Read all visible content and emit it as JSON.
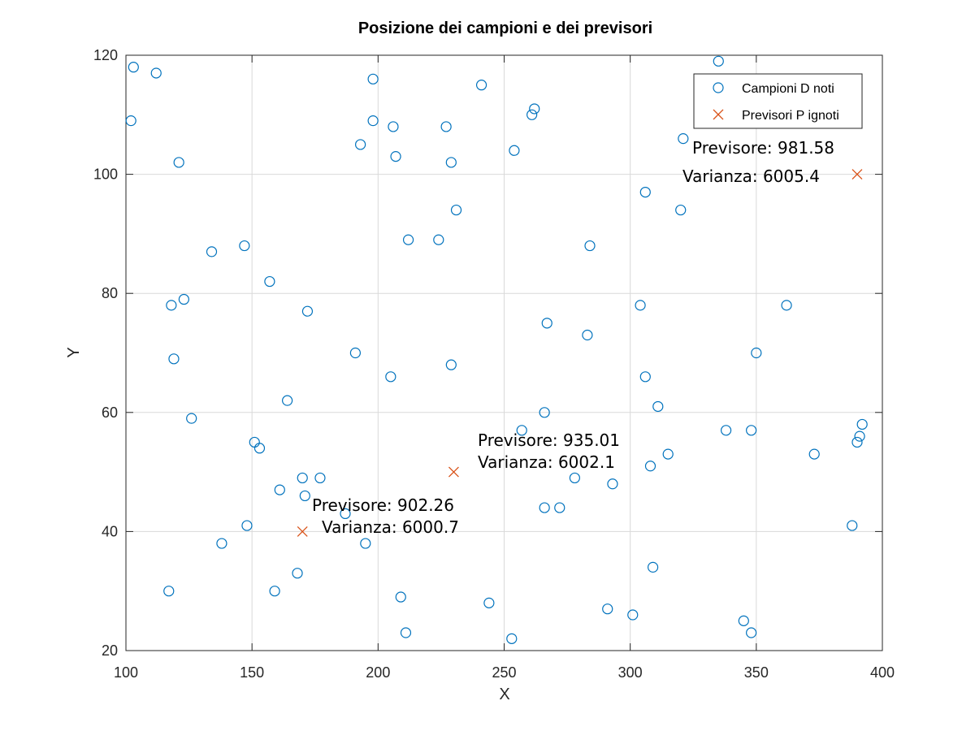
{
  "chart_data": {
    "type": "scatter",
    "title": "Posizione dei campioni e dei previsori",
    "xlabel": "X",
    "ylabel": "Y",
    "xlim": [
      100,
      400
    ],
    "ylim": [
      20,
      120
    ],
    "xticks": [
      100,
      150,
      200,
      250,
      300,
      350,
      400
    ],
    "yticks": [
      20,
      40,
      60,
      80,
      100,
      120
    ],
    "grid": true,
    "legend_position": "top-right",
    "series": [
      {
        "name": "Campioni D noti",
        "marker": "circle",
        "color": "#0072BD",
        "x": [
          103,
          102,
          112,
          121,
          134,
          147,
          157,
          118,
          123,
          119,
          126,
          164,
          172,
          151,
          153,
          170,
          177,
          161,
          171,
          148,
          138,
          117,
          159,
          168,
          187,
          195,
          209,
          211,
          191,
          205,
          198,
          198,
          206,
          193,
          207,
          212,
          224,
          227,
          229,
          231,
          229,
          241,
          254,
          261,
          262,
          284,
          267,
          283,
          266,
          257,
          266,
          272,
          278,
          244,
          253,
          291,
          301,
          293,
          309,
          308,
          306,
          311,
          315,
          304,
          306,
          320,
          321,
          335,
          362,
          350,
          338,
          348,
          373,
          390,
          391,
          392,
          388,
          345,
          348
        ],
        "y": [
          118,
          109,
          117,
          102,
          87,
          88,
          82,
          78,
          79,
          69,
          59,
          62,
          77,
          55,
          54,
          49,
          49,
          47,
          46,
          41,
          38,
          30,
          30,
          33,
          43,
          38,
          29,
          23,
          70,
          66,
          116,
          109,
          108,
          105,
          103,
          89,
          89,
          108,
          102,
          94,
          68,
          115,
          104,
          110,
          111,
          88,
          75,
          73,
          60,
          57,
          44,
          44,
          49,
          28,
          22,
          27,
          26,
          48,
          34,
          51,
          66,
          61,
          53,
          78,
          97,
          94,
          106,
          119,
          78,
          70,
          57,
          57,
          53,
          55,
          56,
          58,
          41,
          25,
          23
        ]
      },
      {
        "name": "Previsori P ignoti",
        "marker": "x",
        "color": "#D95319",
        "x": [
          170,
          230,
          390
        ],
        "y": [
          40,
          50,
          100
        ]
      }
    ],
    "annotations": [
      {
        "line1": "Previsore: 902.26",
        "line2": "Varianza: 6000.7"
      },
      {
        "line1": "Previsore: 935.01",
        "line2": "Varianza: 6002.1"
      },
      {
        "line1": "Previsore: 981.58",
        "line2": "Varianza: 6005.4"
      }
    ]
  }
}
